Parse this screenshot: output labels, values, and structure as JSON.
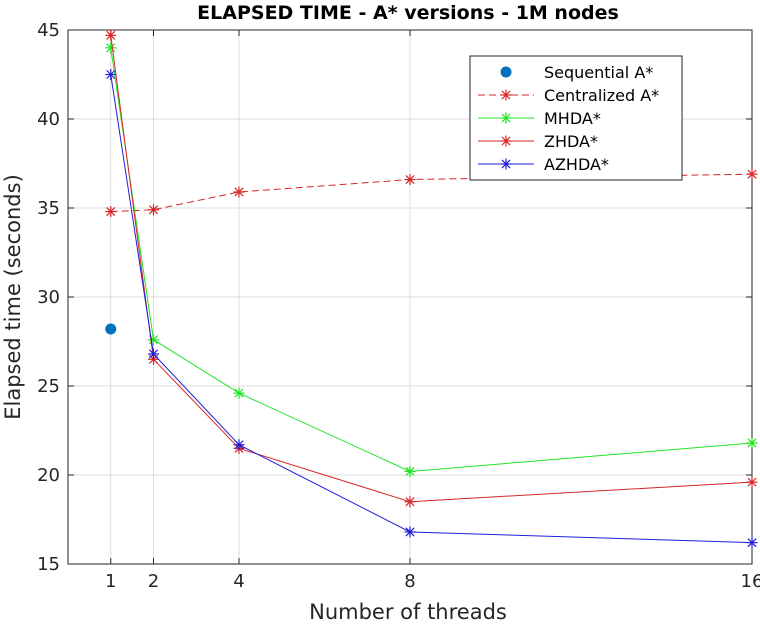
{
  "chart_data": {
    "type": "line",
    "title": "ELAPSED TIME - A* versions - 1M nodes",
    "xlabel": "Number of threads",
    "ylabel": "Elapsed time (seconds)",
    "xlim": [
      0,
      16
    ],
    "ylim": [
      15,
      45
    ],
    "xticks": [
      1,
      2,
      4,
      8,
      16
    ],
    "yticks": [
      15,
      20,
      25,
      30,
      35,
      40,
      45
    ],
    "grid": true,
    "legend_position": "top-right",
    "series": [
      {
        "name": "Sequential A*",
        "style": "point",
        "color": "#0072bd",
        "x": [
          1
        ],
        "y": [
          28.2
        ]
      },
      {
        "name": "Centralized A*",
        "style": "dashed",
        "color": "#d62728",
        "x": [
          1,
          2,
          4,
          8,
          16
        ],
        "y": [
          34.8,
          34.9,
          35.9,
          36.6,
          36.9
        ]
      },
      {
        "name": "MHDA*",
        "style": "solid",
        "color": "#22e422",
        "x": [
          1,
          2,
          4,
          8,
          16
        ],
        "y": [
          44.0,
          27.6,
          24.6,
          20.2,
          21.8
        ]
      },
      {
        "name": "ZHDA*",
        "style": "solid",
        "color": "#d62728",
        "x": [
          1,
          2,
          4,
          8,
          16
        ],
        "y": [
          44.7,
          26.5,
          21.5,
          18.5,
          19.6
        ]
      },
      {
        "name": "AZHDA*",
        "style": "solid",
        "color": "#1f1fd6",
        "x": [
          1,
          2,
          4,
          8,
          16
        ],
        "y": [
          42.5,
          26.8,
          21.7,
          16.8,
          16.2
        ]
      }
    ]
  }
}
